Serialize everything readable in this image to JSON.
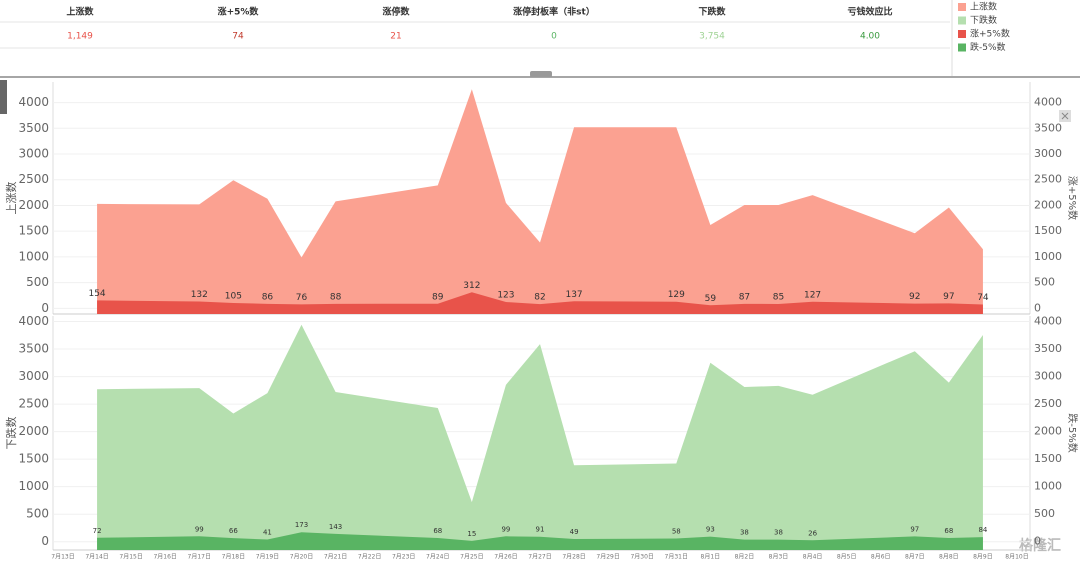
{
  "summary": {
    "headers": [
      "上涨数",
      "涨+5%数",
      "涨停数",
      "涨停封板率（非st）",
      "下跌数",
      "亏钱效应比"
    ],
    "values": [
      "1,149",
      "74",
      "21",
      "0",
      "3,754",
      "4.00"
    ],
    "value_colors": [
      "#e8534a",
      "#c0392b",
      "#e8534a",
      "#59b463",
      "#9fd394",
      "#3a9a3f"
    ]
  },
  "watermark": "格隆汇",
  "chart_data": [
    {
      "type": "area",
      "ylabel": "上涨数",
      "y2label": "涨+5%数",
      "ylim": [
        -110,
        4400
      ],
      "yticks": [
        0,
        500,
        1000,
        1500,
        2000,
        2500,
        3000,
        3500,
        4000
      ],
      "y2lim": [
        -110,
        4400
      ],
      "y2ticks": [
        0,
        500,
        1000,
        1500,
        2000,
        2500,
        3000,
        3500,
        4000
      ],
      "grid": true,
      "series": [
        {
          "name": "上涨数",
          "color": "#fba191",
          "x": [
            "7月14日",
            "7月17日",
            "7月18日",
            "7月19日",
            "7月20日",
            "7月21日",
            "7月24日",
            "7月25日",
            "7月26日",
            "7月27日",
            "7月28日",
            "7月31日",
            "8月1日",
            "8月2日",
            "8月3日",
            "8月4日",
            "8月7日",
            "8月8日",
            "8月9日"
          ],
          "values": [
            2030,
            2020,
            2490,
            2130,
            990,
            2080,
            2390,
            4260,
            2050,
            1280,
            3520,
            3520,
            1620,
            2010,
            2010,
            2200,
            1460,
            1960,
            1149
          ]
        },
        {
          "name": "涨+5%数",
          "color": "#e8534a",
          "axis": "y2",
          "labels": true,
          "x": [
            "7月14日",
            "7月17日",
            "7月18日",
            "7月19日",
            "7月20日",
            "7月21日",
            "7月24日",
            "7月25日",
            "7月26日",
            "7月27日",
            "7月28日",
            "7月31日",
            "8月1日",
            "8月2日",
            "8月3日",
            "8月4日",
            "8月7日",
            "8月8日",
            "8月9日"
          ],
          "values": [
            154,
            132,
            105,
            86,
            76,
            88,
            89,
            312,
            123,
            82,
            137,
            129,
            59,
            87,
            85,
            127,
            92,
            97,
            74
          ]
        }
      ]
    },
    {
      "type": "area",
      "ylabel": "下跌数",
      "y2label": "跌-5%数",
      "ylim": [
        -150,
        4100
      ],
      "yticks": [
        0,
        500,
        1000,
        1500,
        2000,
        2500,
        3000,
        3500,
        4000
      ],
      "y2lim": [
        -150,
        4100
      ],
      "y2ticks": [
        0,
        500,
        1000,
        1500,
        2000,
        2500,
        3000,
        3500,
        4000
      ],
      "grid": true,
      "categories": [
        "7月13日",
        "7月14日",
        "7月15日",
        "7月16日",
        "7月17日",
        "7月18日",
        "7月19日",
        "7月20日",
        "7月21日",
        "7月22日",
        "7月23日",
        "7月24日",
        "7月25日",
        "7月26日",
        "7月27日",
        "7月28日",
        "7月29日",
        "7月30日",
        "7月31日",
        "8月1日",
        "8月2日",
        "8月3日",
        "8月4日",
        "8月5日",
        "8月6日",
        "8月7日",
        "8月8日",
        "8月9日",
        "8月10日"
      ],
      "series": [
        {
          "name": "下跌数",
          "color": "#b5dfaf",
          "x": [
            "7月14日",
            "7月17日",
            "7月18日",
            "7月19日",
            "7月20日",
            "7月21日",
            "7月24日",
            "7月25日",
            "7月26日",
            "7月27日",
            "7月28日",
            "7月31日",
            "8月1日",
            "8月2日",
            "8月3日",
            "8月4日",
            "8月7日",
            "8月8日",
            "8月9日"
          ],
          "values": [
            2770,
            2790,
            2330,
            2700,
            3940,
            2720,
            2430,
            720,
            2850,
            3590,
            1390,
            1420,
            3250,
            2810,
            2830,
            2670,
            3460,
            2890,
            3754
          ]
        },
        {
          "name": "跌-5%数",
          "color": "#59b463",
          "axis": "y2",
          "labels": true,
          "x": [
            "7月14日",
            "7月17日",
            "7月18日",
            "7月19日",
            "7月20日",
            "7月21日",
            "7月24日",
            "7月25日",
            "7月26日",
            "7月27日",
            "7月28日",
            "7月31日",
            "8月1日",
            "8月2日",
            "8月3日",
            "8月4日",
            "8月7日",
            "8月8日",
            "8月9日"
          ],
          "values": [
            72,
            99,
            66,
            41,
            173,
            143,
            68,
            15,
            99,
            91,
            49,
            58,
            93,
            38,
            38,
            26,
            97,
            68,
            84
          ]
        }
      ]
    }
  ]
}
